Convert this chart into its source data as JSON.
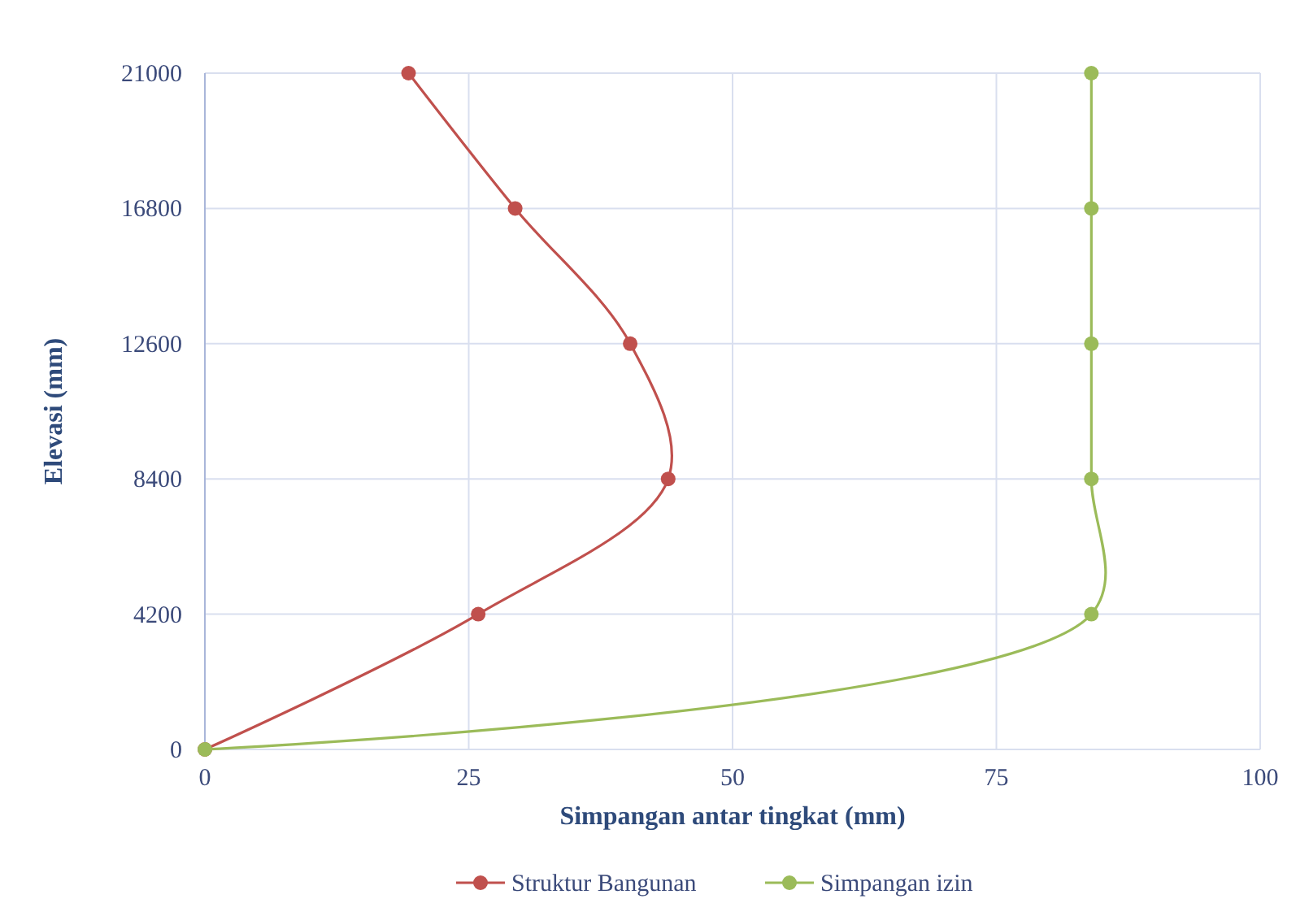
{
  "chart_data": {
    "type": "line",
    "xlabel": "Simpangan antar tingkat (mm)",
    "ylabel": "Elevasi (mm)",
    "xlim": [
      0,
      100
    ],
    "xticks": [
      0,
      25,
      50,
      75,
      100
    ],
    "ylim": [
      0,
      21000
    ],
    "yticks": [
      0,
      4200,
      8400,
      12600,
      16800,
      21000
    ],
    "grid": true,
    "legend": "bottom",
    "marker": "circle",
    "line_style": "solid",
    "series": [
      {
        "name": "Struktur Bangunan",
        "color": "#c0504d",
        "x": [
          0,
          25.9,
          43.9,
          40.3,
          29.4,
          19.3
        ],
        "values": [
          0,
          4200,
          8400,
          12600,
          16800,
          21000
        ]
      },
      {
        "name": "Simpangan izin",
        "color": "#9bbb59",
        "x": [
          0,
          84,
          84,
          84,
          84,
          84
        ],
        "values": [
          0,
          4200,
          8400,
          12600,
          16800,
          21000
        ]
      }
    ]
  }
}
